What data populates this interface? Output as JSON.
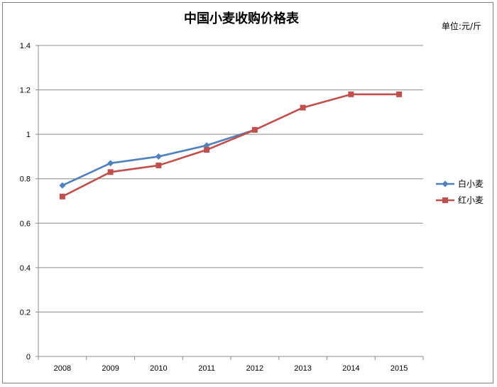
{
  "chart_data": {
    "type": "line",
    "title": "中国小麦收购价格表",
    "unit_label": "单位:元/斤",
    "xlabel": "",
    "ylabel": "",
    "x": [
      "2008",
      "2009",
      "2010",
      "2011",
      "2012",
      "2013",
      "2014",
      "2015"
    ],
    "ylim": [
      0,
      1.4
    ],
    "yticks": [
      "0",
      "0.2",
      "0.4",
      "0.6",
      "0.8",
      "1",
      "1.2",
      "1.4"
    ],
    "grid": true,
    "legend_position": "right",
    "series": [
      {
        "name": "白小麦",
        "color": "#4f81bd",
        "marker": "diamond",
        "values": [
          0.77,
          0.87,
          0.9,
          0.95,
          1.02,
          null,
          null,
          null
        ]
      },
      {
        "name": "红小麦",
        "color": "#c0504d",
        "marker": "square",
        "values": [
          0.72,
          0.83,
          0.86,
          0.93,
          1.02,
          1.12,
          1.18,
          1.18
        ]
      }
    ]
  }
}
